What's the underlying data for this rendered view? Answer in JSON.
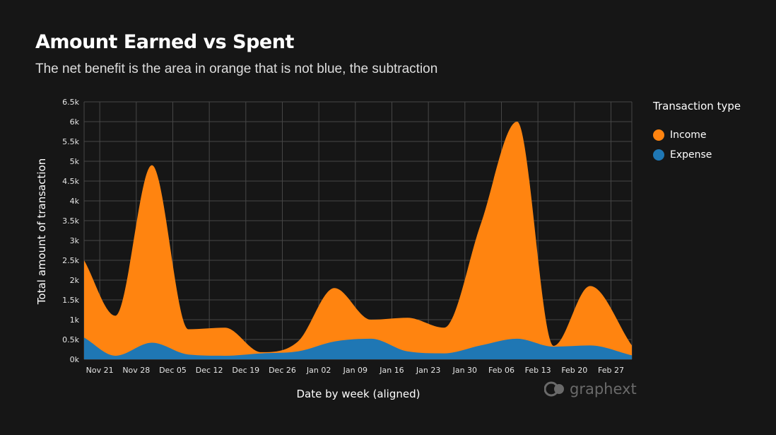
{
  "chart_data": {
    "type": "area",
    "title": "Amount Earned vs Spent",
    "subtitle": "The net benefit is the area in orange that is not blue, the subtraction",
    "xlabel": "Date by week (aligned)",
    "ylabel": "Total amount of transaction",
    "ylim": [
      0,
      6500
    ],
    "y_ticks": [
      0,
      500,
      1000,
      1500,
      2000,
      2500,
      3000,
      3500,
      4000,
      4500,
      5000,
      5500,
      6000,
      6500
    ],
    "y_tick_labels": [
      "0k",
      "0.5k",
      "1k",
      "1.5k",
      "2k",
      "2.5k",
      "3k",
      "3.5k",
      "4k",
      "4.5k",
      "5k",
      "5.5k",
      "6k",
      "6.5k"
    ],
    "x_tick_labels": [
      "Nov 21",
      "Nov 28",
      "Dec 05",
      "Dec 12",
      "Dec 19",
      "Dec 26",
      "Jan 02",
      "Jan 09",
      "Jan 16",
      "Jan 23",
      "Jan 30",
      "Feb 06",
      "Feb 13",
      "Feb 20",
      "Feb 27"
    ],
    "x_ticks": [
      "2022-11-21",
      "2022-11-28",
      "2022-12-05",
      "2022-12-12",
      "2022-12-19",
      "2022-12-26",
      "2023-01-02",
      "2023-01-09",
      "2023-01-16",
      "2023-01-23",
      "2023-01-30",
      "2023-02-06",
      "2023-02-13",
      "2023-02-20",
      "2023-02-27"
    ],
    "xlim": [
      "2022-11-18",
      "2023-03-03"
    ],
    "x": [
      "2022-11-18",
      "2022-11-24",
      "2022-12-01",
      "2022-12-08",
      "2022-12-15",
      "2022-12-22",
      "2022-12-29",
      "2023-01-05",
      "2023-01-12",
      "2023-01-19",
      "2023-01-26",
      "2023-02-02",
      "2023-02-09",
      "2023-02-16",
      "2023-02-23",
      "2023-03-03"
    ],
    "grid": true,
    "stacked": true,
    "series": [
      {
        "name": "Expense",
        "values": [
          550,
          90,
          420,
          120,
          90,
          150,
          200,
          450,
          520,
          200,
          150,
          350,
          520,
          320,
          350,
          100
        ]
      },
      {
        "name": "Income",
        "values": [
          1950,
          1010,
          4480,
          640,
          710,
          30,
          250,
          1350,
          480,
          850,
          650,
          3050,
          5480,
          20,
          1500,
          250
        ]
      }
    ],
    "legend": {
      "title": "Transaction type",
      "position": "right",
      "items": [
        {
          "name": "Income",
          "color": "#ff8410"
        },
        {
          "name": "Expense",
          "color": "#1f77b4"
        }
      ]
    },
    "colors": {
      "Income": "#ff8410",
      "Expense": "#1f77b4"
    }
  },
  "branding": {
    "text": "graphext",
    "icon": "graphext-logo-icon"
  }
}
